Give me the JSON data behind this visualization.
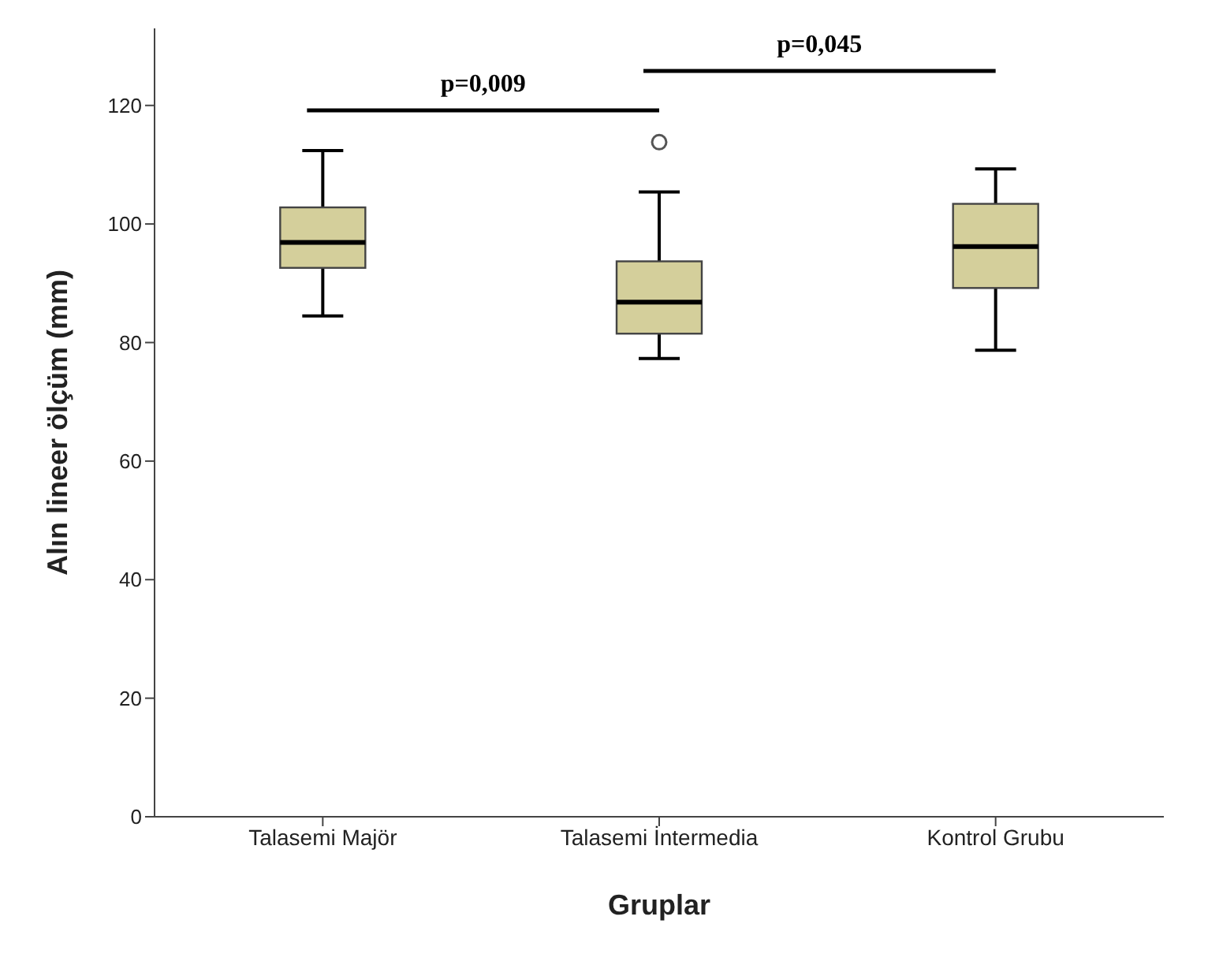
{
  "chart_data": {
    "type": "box",
    "xlabel": "Gruplar",
    "ylabel": "Alın lineer ölçüm (mm)",
    "categories": [
      "Talasemi Majör",
      "Talasemi İntermedia",
      "Kontrol Grubu"
    ],
    "color": "#d4cf9b",
    "boxes": [
      {
        "low": 84.5,
        "q1": 92.6,
        "median": 96.9,
        "q3": 102.8,
        "high": 112.4
      },
      {
        "low": 77.3,
        "q1": 81.5,
        "median": 86.8,
        "q3": 93.7,
        "high": 105.4,
        "outliers": [
          113.8
        ]
      },
      {
        "low": 78.7,
        "q1": 89.2,
        "median": 96.2,
        "q3": 103.4,
        "high": 109.3
      }
    ],
    "ylim": [
      0,
      133
    ],
    "yticks": [
      0,
      20,
      40,
      60,
      80,
      100,
      120
    ],
    "grid": false,
    "annotations": [
      "p=0,009",
      "p=0,045"
    ]
  }
}
